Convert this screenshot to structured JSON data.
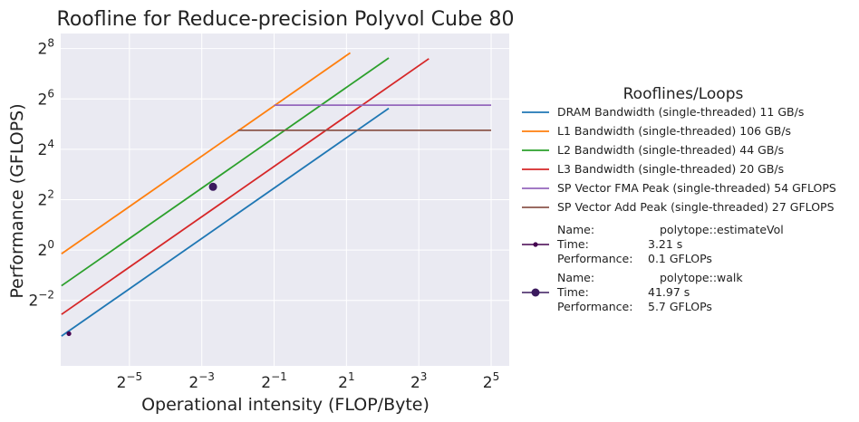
{
  "chart_data": {
    "type": "line",
    "title": "Roofline for Reduce-precision Polyvol Cube 80",
    "xlabel": "Operational intensity (FLOP/Byte)",
    "ylabel": "Performance (GFLOPS)",
    "xscale": "log2",
    "yscale": "log2",
    "xlim_exp": [
      -6.9,
      5.5
    ],
    "ylim_exp": [
      -4.6,
      8.6
    ],
    "xticks_exp": [
      -5,
      -3,
      -1,
      1,
      3,
      5
    ],
    "yticks_exp": [
      -2,
      0,
      2,
      4,
      6,
      8
    ],
    "grid": true,
    "legend": {
      "title": "Rooflines/Loops",
      "placement": "right"
    },
    "series": [
      {
        "name": "DRAM Bandwidth (single-threaded) 11 GB/s",
        "kind": "bandwidth",
        "bandwidth": 11,
        "x_range": [
          0.0085,
          4.5
        ],
        "color": "#1f77b4"
      },
      {
        "name": "L1 Bandwidth (single-threaded) 106 GB/s",
        "kind": "bandwidth",
        "bandwidth": 106,
        "x_range": [
          0.0085,
          2.15
        ],
        "color": "#ff7f0e"
      },
      {
        "name": "L2 Bandwidth (single-threaded) 44 GB/s",
        "kind": "bandwidth",
        "bandwidth": 44,
        "x_range": [
          0.0085,
          4.5
        ],
        "color": "#2ca02c"
      },
      {
        "name": "L3 Bandwidth (single-threaded) 20 GB/s",
        "kind": "bandwidth",
        "bandwidth": 20,
        "x_range": [
          0.0085,
          9.7
        ],
        "color": "#d62728"
      },
      {
        "name": "SP Vector FMA Peak (single-threaded) 54 GFLOPS",
        "kind": "peak",
        "peak": 54,
        "x_range": [
          0.5,
          32
        ],
        "color": "#9467bd"
      },
      {
        "name": "SP Vector Add Peak (single-threaded) 27 GFLOPS",
        "kind": "peak",
        "peak": 27,
        "x_range": [
          0.25,
          32
        ],
        "color": "#8c564b"
      }
    ],
    "loops": [
      {
        "name_label": "Name:",
        "name": "polytope::estimateVol",
        "time_label": "Time:",
        "time": "3.21 s",
        "perf_label": "Performance:",
        "performance": "0.1 GFLOPs",
        "x": 0.0098,
        "y": 0.1,
        "color": "#44004f",
        "marker": "small"
      },
      {
        "name_label": "Name:",
        "name": "polytope::walk",
        "time_label": "Time:",
        "time": "41.97 s",
        "perf_label": "Performance:",
        "performance": "5.7 GFLOPs",
        "x": 0.155,
        "y": 5.7,
        "color": "#3b1a5e",
        "marker": "large"
      }
    ]
  }
}
